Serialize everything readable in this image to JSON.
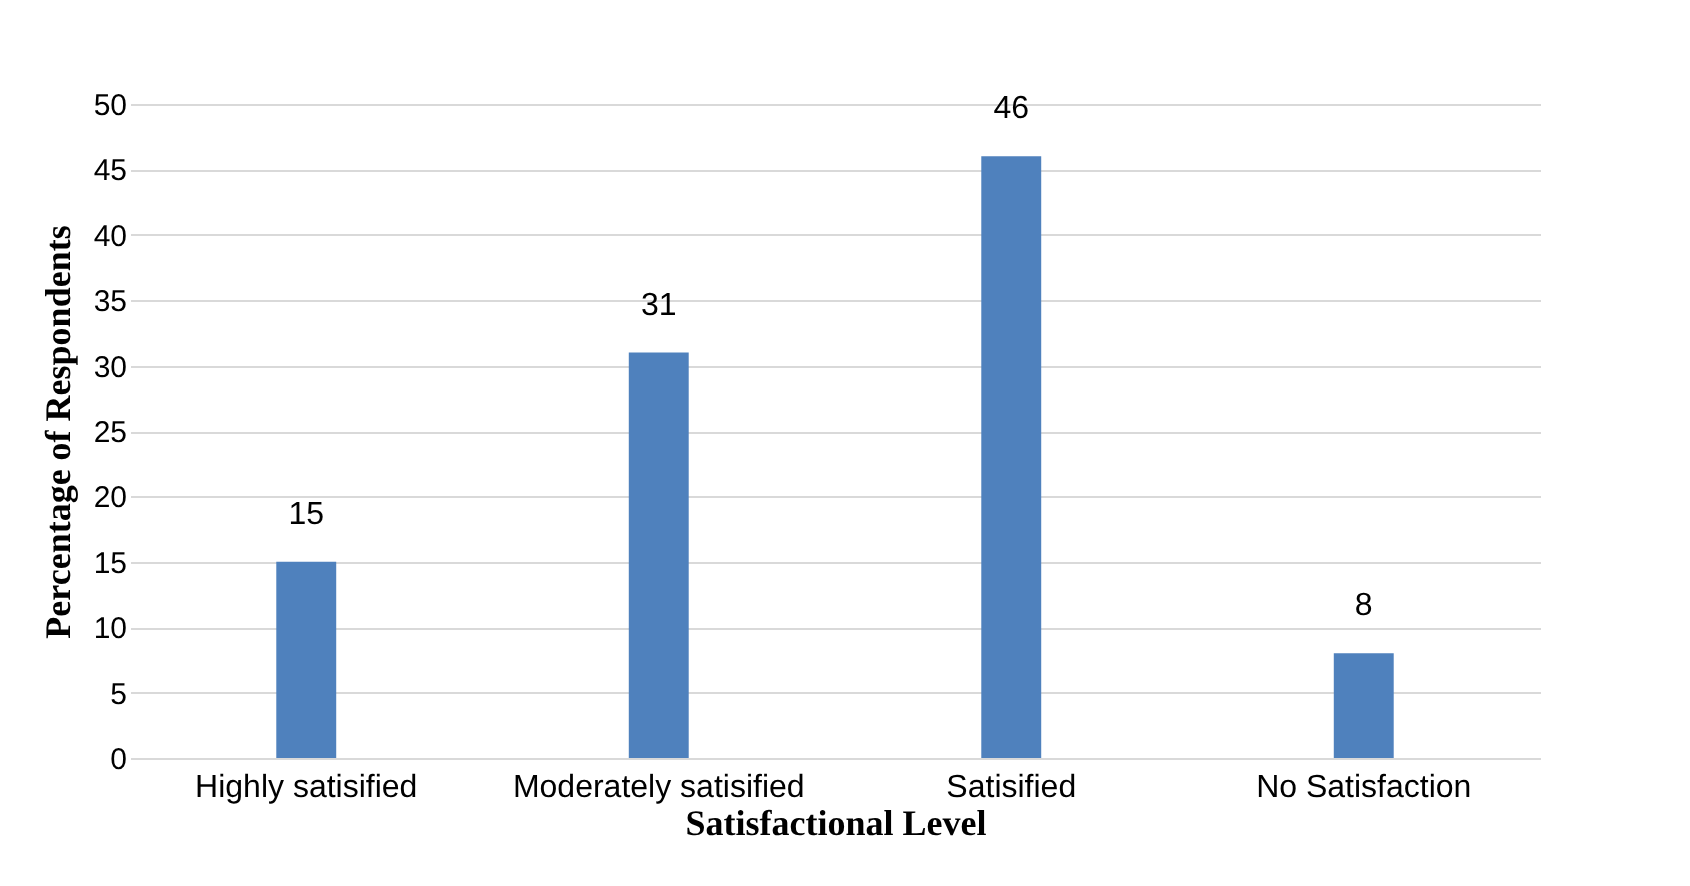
{
  "chart_data": {
    "type": "bar",
    "xlabel": "Satisfactional Level",
    "ylabel": "Percentage of Respondents",
    "categories": [
      "Highly satisified",
      "Moderately satisified",
      "Satisified",
      "No Satisfaction"
    ],
    "values": [
      15,
      31,
      46,
      8
    ],
    "color": "#4f81bd",
    "ylim": [
      0,
      50
    ],
    "yticks": [
      0,
      5,
      10,
      15,
      20,
      25,
      30,
      35,
      40,
      45,
      50
    ],
    "grid": "y",
    "data_labels": true
  }
}
